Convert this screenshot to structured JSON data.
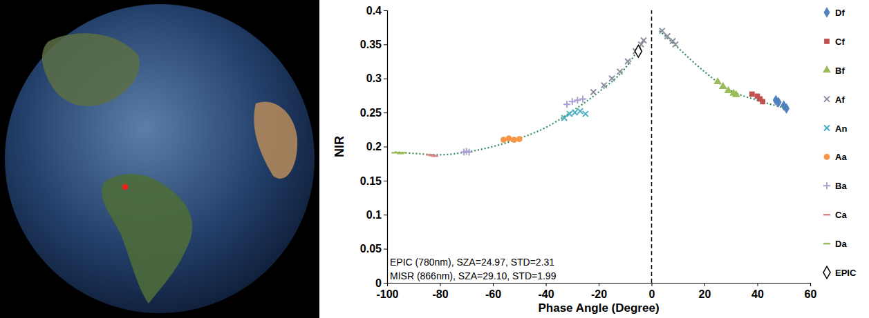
{
  "chart_data": {
    "type": "scatter",
    "x_label": "Phase Angle (Degree)",
    "y_label": "NIR",
    "xlim": [
      -100,
      60
    ],
    "xticks": [
      -100,
      -80,
      -60,
      -40,
      -20,
      0,
      20,
      40,
      60
    ],
    "ylim": [
      0,
      0.4
    ],
    "yticks": [
      0,
      0.05,
      0.1,
      0.15,
      0.2,
      0.25,
      0.3,
      0.35,
      0.4
    ],
    "grid": false,
    "legend": "right",
    "annotations": [
      "EPIC (780nm), SZA=24.97, STD=2.31",
      "MISR (866nm), SZA=29.10, STD=1.99"
    ],
    "reference_line": {
      "x": 0,
      "line_style": "dashed"
    },
    "series": [
      {
        "name": "Df",
        "color": "#4f81bd",
        "marker": "diamond",
        "x": [
          47,
          48,
          50,
          51
        ],
        "values": [
          0.268,
          0.265,
          0.26,
          0.256
        ]
      },
      {
        "name": "Cf",
        "color": "#c0504d",
        "marker": "square",
        "x": [
          38,
          40,
          41,
          42
        ],
        "values": [
          0.277,
          0.274,
          0.27,
          0.266
        ]
      },
      {
        "name": "Bf",
        "color": "#9bbb59",
        "marker": "triangle",
        "x": [
          25,
          27,
          29,
          31,
          32
        ],
        "values": [
          0.295,
          0.288,
          0.282,
          0.278,
          0.276
        ]
      },
      {
        "name": "Af",
        "color": "#8c8ca0",
        "marker": "x",
        "x": [
          -22,
          -18,
          -15,
          -12,
          -9,
          -6,
          -4,
          -3,
          4,
          6,
          8,
          9
        ],
        "values": [
          0.28,
          0.29,
          0.3,
          0.31,
          0.325,
          0.34,
          0.35,
          0.356,
          0.37,
          0.362,
          0.355,
          0.35
        ]
      },
      {
        "name": "An",
        "color": "#4bacc6",
        "marker": "x",
        "x": [
          -33,
          -31,
          -29,
          -27,
          -25
        ],
        "values": [
          0.242,
          0.248,
          0.25,
          0.252,
          0.248
        ]
      },
      {
        "name": "Aa",
        "color": "#f79646",
        "marker": "circle",
        "x": [
          -56,
          -54,
          -52,
          -50
        ],
        "values": [
          0.21,
          0.212,
          0.21,
          0.211
        ]
      },
      {
        "name": "Ba",
        "color": "#a99fd0",
        "marker": "plus",
        "x": [
          -71,
          -70,
          -69,
          -32,
          -30,
          -28,
          -26
        ],
        "values": [
          0.192,
          0.193,
          0.192,
          0.262,
          0.266,
          0.268,
          0.27
        ]
      },
      {
        "name": "Ca",
        "color": "#d9868a",
        "marker": "dash",
        "x": [
          -84,
          -83,
          -82
        ],
        "values": [
          0.188,
          0.187,
          0.186
        ]
      },
      {
        "name": "Da",
        "color": "#9bbb59",
        "marker": "dash",
        "x": [
          -97,
          -95,
          -94
        ],
        "values": [
          0.191,
          0.19,
          0.191
        ]
      },
      {
        "name": "EPIC",
        "color": "#000000",
        "marker": "diamond_open",
        "x": [
          -5
        ],
        "values": [
          0.34
        ]
      },
      {
        "type": "line",
        "color": "#2e8b57",
        "line_style": "dotted",
        "x": [
          -97,
          -90,
          -80,
          -70,
          -60,
          -50,
          -40,
          -30,
          -20,
          -10,
          -3,
          0,
          3,
          10,
          20,
          30,
          40,
          52
        ],
        "values": [
          0.192,
          0.19,
          0.188,
          0.192,
          0.2,
          0.212,
          0.228,
          0.252,
          0.28,
          0.315,
          0.355,
          null,
          0.37,
          0.345,
          0.31,
          0.282,
          0.268,
          0.255
        ]
      }
    ]
  }
}
